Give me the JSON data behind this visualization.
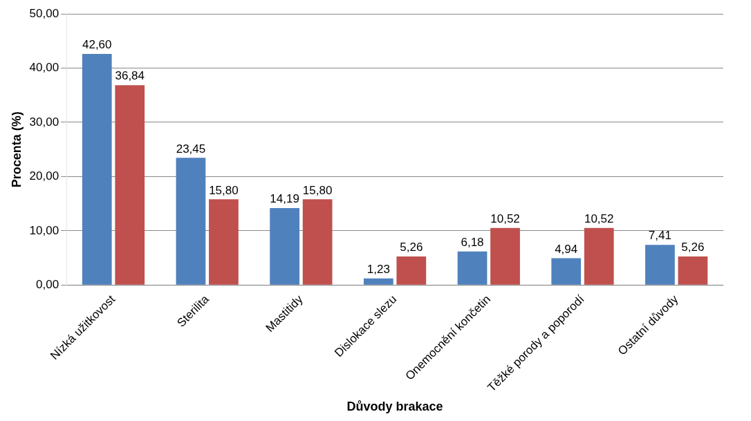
{
  "chart_data": {
    "type": "bar",
    "xlabel": "Důvody brakace",
    "ylabel": "Procenta (%)",
    "categories": [
      "Nízká užitkovost",
      "Sterilita",
      "Mastitidy",
      "Dislokace slezu",
      "Onemocnění končetin",
      "Těžké porody a poporodí",
      "Ostatní důvody"
    ],
    "series": [
      {
        "color": "#4f81bd",
        "values": [
          42.6,
          23.45,
          14.19,
          1.23,
          6.18,
          4.94,
          7.41
        ],
        "value_labels": [
          "42,60",
          "23,45",
          "14,19",
          "1,23",
          "6,18",
          "4,94",
          "7,41"
        ]
      },
      {
        "color": "#c0504d",
        "values": [
          36.84,
          15.8,
          15.8,
          5.26,
          10.52,
          10.52,
          5.26
        ],
        "value_labels": [
          "36,84",
          "15,80",
          "15,80",
          "5,26",
          "10,52",
          "10,52",
          "5,26"
        ]
      }
    ],
    "ylim": [
      0,
      50
    ],
    "yticks": [
      {
        "value": 0,
        "label": "0,00"
      },
      {
        "value": 10,
        "label": "10,00"
      },
      {
        "value": 20,
        "label": "20,00"
      },
      {
        "value": 30,
        "label": "30,00"
      },
      {
        "value": 40,
        "label": "40,00"
      },
      {
        "value": 50,
        "label": "50,00"
      }
    ],
    "grid": "y",
    "legend": false
  }
}
